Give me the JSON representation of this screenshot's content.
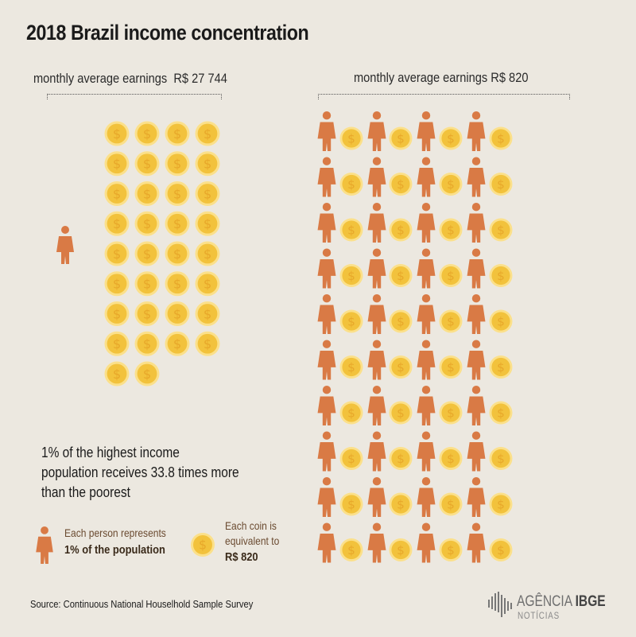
{
  "title": "2018 Brazil income concentration",
  "chart_data": {
    "type": "pictogram",
    "groups": [
      {
        "label": "monthly average earnings",
        "value_label": "R$ 27 744",
        "persons": 1,
        "coins": 34
      },
      {
        "label": "monthly average earnings",
        "value_label": "R$ 820",
        "persons": 40,
        "coins": 40
      }
    ],
    "colors": {
      "person": "#d97a45",
      "coin_fill": "#f2c23c",
      "coin_ring": "#fbe08a",
      "coin_symbol": "#e8a82a"
    },
    "icons": {
      "person": "person-icon",
      "coin": "coin-icon"
    }
  },
  "statement": "1% of the highest income population receives 33.8 times more than the poorest",
  "legend": {
    "person_text": "Each person represents",
    "person_value": "1% of the population",
    "coin_text_1": "Each coin is",
    "coin_text_2": "equivalent to",
    "coin_value": "R$ 820"
  },
  "source": "Source: Continuous National Houselhold Sample Survey",
  "logo": {
    "name_part1": "AGÊNCIA",
    "name_part2": "IBGE",
    "subtitle": "NOTÍCIAS"
  }
}
